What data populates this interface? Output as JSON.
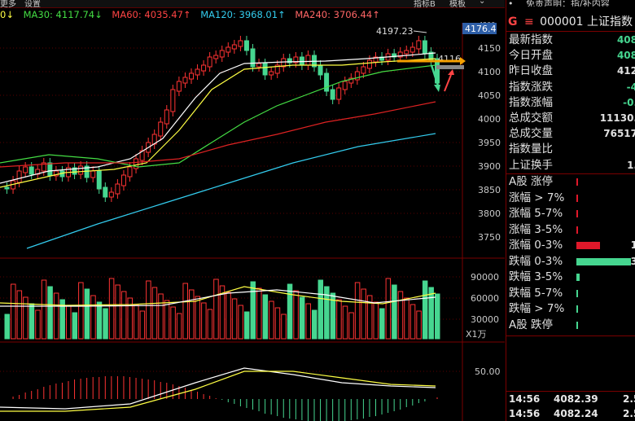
{
  "topbar": {
    "left1": "更多",
    "left2": "设置",
    "tab1": "指标B",
    "tab2": "模板",
    "arrow": "⌄"
  },
  "legend": {
    "ma_prefix": "0↓",
    "ma30": "MA30: 4117.74↓",
    "ma60": "MA60: 4035.47↑",
    "ma120": "MA120: 3968.01↑",
    "ma240": "MA240: 3706.44↑"
  },
  "price_axis": {
    "current": "4176.4",
    "ticks": [
      "4150",
      "4100",
      "4050",
      "4000",
      "3950",
      "3900",
      "3850",
      "3800",
      "3750"
    ],
    "top": "4200"
  },
  "annotations": {
    "high": "4197.23",
    "last": "4116"
  },
  "vol_axis": {
    "ticks": [
      "90000",
      "60000",
      "30000"
    ],
    "unit": "X1万"
  },
  "macd_axis": {
    "tick": "50.00"
  },
  "header": {
    "bullet": "•",
    "disclaimer": "免责声明：指/补内容",
    "badge": "G",
    "code": "000001 上证指数",
    "icon_menu": "≡"
  },
  "quote": [
    {
      "label": "最新指数",
      "value": "408",
      "color": "g"
    },
    {
      "label": "今日开盘",
      "value": "408",
      "color": "g"
    },
    {
      "label": "昨日收盘",
      "value": "412",
      "color": "w"
    },
    {
      "label": "指数涨跌",
      "value": "-4",
      "color": "g"
    },
    {
      "label": "指数涨幅",
      "value": "-0.",
      "color": "g"
    },
    {
      "label": "总成交额",
      "value": "11130.",
      "color": "w"
    },
    {
      "label": "总成交量",
      "value": "76517",
      "color": "w"
    },
    {
      "label": "指数量比",
      "value": "",
      "color": "w"
    },
    {
      "label": "上证换手",
      "value": "1.",
      "color": "w"
    }
  ],
  "breadth": [
    {
      "label": "A股 涨停",
      "value": "",
      "color": "#e0182a",
      "fill": 0.0
    },
    {
      "label": "涨幅 > 7%",
      "value": "",
      "color": "#e0182a",
      "fill": 0.02
    },
    {
      "label": "涨幅 5-7%",
      "value": "",
      "color": "#e0182a",
      "fill": 0.01
    },
    {
      "label": "涨幅 3-5%",
      "value": "",
      "color": "#e0182a",
      "fill": 0.02
    },
    {
      "label": "涨幅 0-3%",
      "value": "1",
      "color": "#e0182a",
      "fill": 0.42
    },
    {
      "label": "跌幅 0-3%",
      "value": "3",
      "color": "#46d690",
      "fill": 0.95
    },
    {
      "label": "跌幅 3-5%",
      "value": "",
      "color": "#46d690",
      "fill": 0.06
    },
    {
      "label": "跌幅 5-7%",
      "value": "",
      "color": "#46d690",
      "fill": 0.01
    },
    {
      "label": "跌幅 > 7%",
      "value": "",
      "color": "#46d690",
      "fill": 0.01
    },
    {
      "label": "A股 跌停",
      "value": "",
      "color": "#46d690",
      "fill": 0.01
    }
  ],
  "ticks": [
    {
      "time": "14:56",
      "price": "4082.39",
      "vol": "2.5"
    },
    {
      "time": "14:56",
      "price": "4082.24",
      "vol": "2.5"
    }
  ],
  "colors": {
    "up": "#ff3333",
    "down": "#46d690",
    "ma5": "#ffffff",
    "ma10": "#ffff44",
    "ma30": "#44dd44",
    "ma60": "#dd2222",
    "ma120": "#33ccee",
    "axis": "#7a0000"
  }
}
